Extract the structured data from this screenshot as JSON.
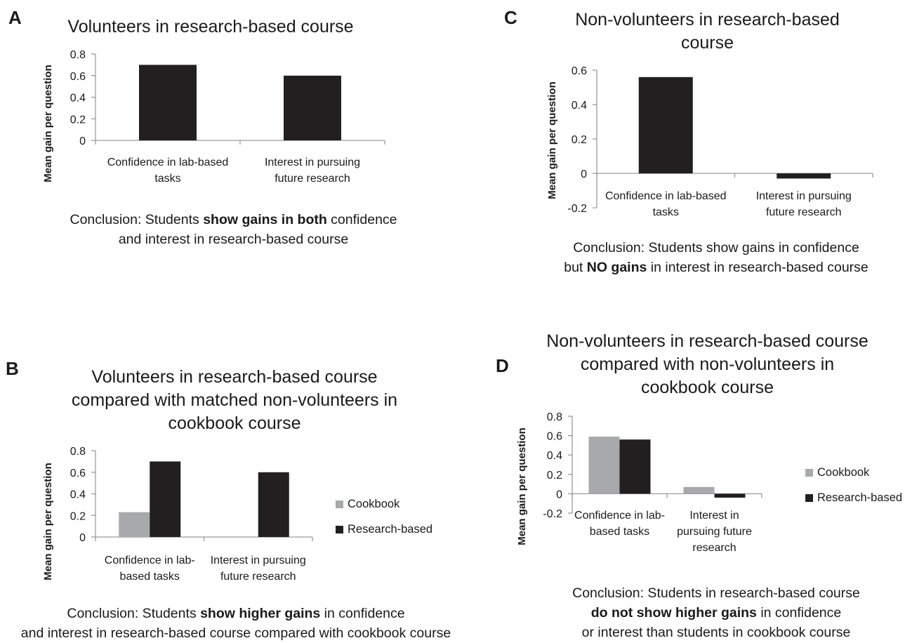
{
  "panels": {
    "A": {
      "letter": "A",
      "title": "Volunteers in research-based course",
      "conclusion_pre": "Conclusion: Students ",
      "conclusion_bold": "show gains in both",
      "conclusion_post": " confidence",
      "conclusion_line2": "and interest in research-based course"
    },
    "B": {
      "letter": "B",
      "title_line1": "Volunteers in research-based course",
      "title_line2": "compared with matched non-volunteers in",
      "title_line3": "cookbook course",
      "conclusion_pre": "Conclusion: Students ",
      "conclusion_bold": "show higher gains",
      "conclusion_post": " in confidence",
      "conclusion_line2": "and interest in research-based course compared with cookbook course"
    },
    "C": {
      "letter": "C",
      "title_line1": "Non-volunteers in research-based",
      "title_line2": "course",
      "conclusion_line1": "Conclusion: Students show gains in confidence",
      "conclusion_pre": "but ",
      "conclusion_bold": "NO gains",
      "conclusion_post": " in interest in research-based course"
    },
    "D": {
      "letter": "D",
      "title_line1": "Non-volunteers in research-based course",
      "title_line2": "compared with non-volunteers in",
      "title_line3": "cookbook course",
      "conclusion_line1": "Conclusion: Students in research-based course",
      "conclusion_bold": "do not show higher gains",
      "conclusion_post": " in confidence",
      "conclusion_line3": "or interest than students in cookbook course"
    }
  },
  "legend": {
    "cookbook": "Cookbook",
    "research": "Research-based"
  },
  "colors": {
    "cookbook": "#a7a9ac",
    "research": "#231f20",
    "axis": "#9a9a9a"
  },
  "chart_data": [
    {
      "id": "A",
      "type": "bar",
      "title": "Volunteers in research-based course",
      "ylabel": "Mean gain per question",
      "categories": [
        [
          "Confidence in lab-based",
          "tasks"
        ],
        [
          "Interest in pursuing",
          "future research"
        ]
      ],
      "series": [
        {
          "key": "research",
          "values": [
            0.7,
            0.6
          ]
        }
      ],
      "yticks": [
        "0",
        "0.2",
        "0.4",
        "0.6",
        "0.8"
      ],
      "ylim": [
        0,
        0.8
      ]
    },
    {
      "id": "B",
      "type": "bar",
      "title": "Volunteers in research-based course compared with matched non-volunteers in cookbook course",
      "ylabel": "Mean gain per question",
      "categories": [
        [
          "Confidence in lab-",
          "based tasks"
        ],
        [
          "Interest in pursuing",
          "future research"
        ]
      ],
      "series": [
        {
          "name": "Cookbook",
          "key": "cookbook",
          "values": [
            0.23,
            null
          ]
        },
        {
          "name": "Research-based",
          "key": "research",
          "values": [
            0.7,
            0.6
          ]
        }
      ],
      "yticks": [
        "0",
        "0.2",
        "0.4",
        "0.6",
        "0.8"
      ],
      "ylim": [
        0,
        0.8
      ],
      "legend": "right"
    },
    {
      "id": "C",
      "type": "bar",
      "title": "Non-volunteers in research-based course",
      "ylabel": "Mean gain per question",
      "categories": [
        [
          "Confidence in lab-based",
          "tasks"
        ],
        [
          "Interest in pursuing",
          "future research"
        ]
      ],
      "series": [
        {
          "key": "research",
          "values": [
            0.56,
            -0.03
          ]
        }
      ],
      "yticks": [
        "-0.2",
        "0",
        "0.2",
        "0.4",
        "0.6"
      ],
      "ylim": [
        -0.2,
        0.6
      ]
    },
    {
      "id": "D",
      "type": "bar",
      "title": "Non-volunteers in research-based course compared with non-volunteers in cookbook course",
      "ylabel": "Mean gain per question",
      "categories": [
        [
          "Confidence in lab-",
          "based tasks"
        ],
        [
          "Interest in",
          "pursuing future",
          "research"
        ]
      ],
      "series": [
        {
          "name": "Cookbook",
          "key": "cookbook",
          "values": [
            0.59,
            0.07
          ]
        },
        {
          "name": "Research-based",
          "key": "research",
          "values": [
            0.56,
            -0.04
          ]
        }
      ],
      "yticks": [
        "-0.2",
        "0",
        "0.2",
        "0.4",
        "0.6",
        "0.8"
      ],
      "ylim": [
        -0.2,
        0.8
      ],
      "legend": "right"
    }
  ]
}
